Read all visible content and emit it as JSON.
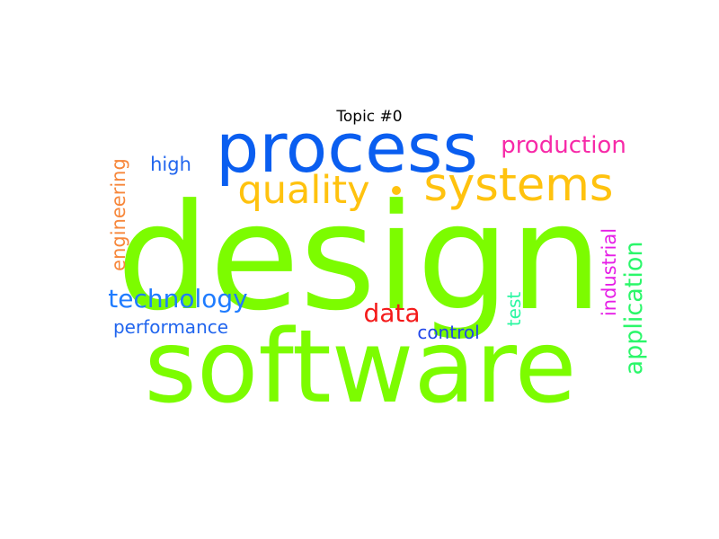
{
  "title": "Topic #0",
  "words": [
    {
      "text": "design",
      "color": "#7cfc00",
      "rotated": false
    },
    {
      "text": "software",
      "color": "#7cfc00",
      "rotated": false
    },
    {
      "text": "process",
      "color": "#0a5ef0",
      "rotated": false
    },
    {
      "text": "systems",
      "color": "#ffc20e",
      "rotated": false
    },
    {
      "text": "quality",
      "color": "#ffc20e",
      "rotated": false
    },
    {
      "text": "production",
      "color": "#f72aa8",
      "rotated": false
    },
    {
      "text": "technology",
      "color": "#1f7cff",
      "rotated": false
    },
    {
      "text": "application",
      "color": "#2bf76a",
      "rotated": true
    },
    {
      "text": "engineering",
      "color": "#f7873b",
      "rotated": true
    },
    {
      "text": "industrial",
      "color": "#e61ee6",
      "rotated": true
    },
    {
      "text": "data",
      "color": "#f41a1a",
      "rotated": false
    },
    {
      "text": "high",
      "color": "#2266ee",
      "rotated": false
    },
    {
      "text": "performance",
      "color": "#2266ee",
      "rotated": false
    },
    {
      "text": "control",
      "color": "#2046ea",
      "rotated": false
    },
    {
      "text": "test",
      "color": "#2bf7a2",
      "rotated": true
    },
    {
      "text": "dot",
      "color": "#ffc20e",
      "rotated": false
    }
  ]
}
